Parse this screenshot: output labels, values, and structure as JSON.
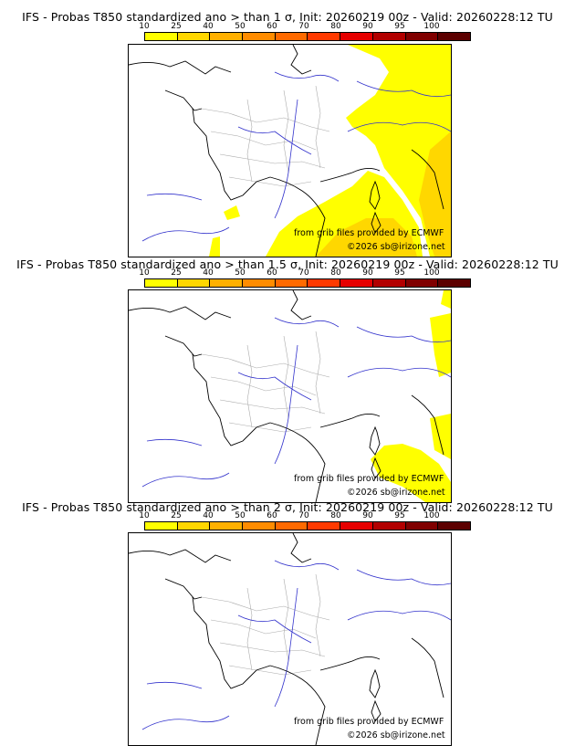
{
  "colors": {
    "bins": [
      "#ffff00",
      "#ffd700",
      "#ffb000",
      "#ff8c00",
      "#ff6a00",
      "#ff3a00",
      "#e60000",
      "#b20000",
      "#800000",
      "#5c0000"
    ],
    "land_border": "#000000",
    "rivers": "#3333cc",
    "admin": "#aaaaaa"
  },
  "colorbar_labels": [
    "10",
    "25",
    "40",
    "50",
    "60",
    "70",
    "80",
    "90",
    "95",
    "100"
  ],
  "panels": [
    {
      "title": "IFS - Probas T850  standardized ano > than 1 σ, Init: 20260219 00z - Valid: 20260228:12 TU",
      "threshold": "1",
      "credit_grib": "from grib files provided by ECMWF",
      "credit_copyright": "©2026 sb@irizone.net"
    },
    {
      "title": "IFS - Probas T850  standardized ano > than 1.5 σ, Init: 20260219 00z - Valid: 20260228:12 TU",
      "threshold": "1.5",
      "credit_grib": "from grib files provided by ECMWF",
      "credit_copyright": "©2026 sb@irizone.net"
    },
    {
      "title": "IFS - Probas T850  standardized ano > than 2 σ, Init: 20260219 00z - Valid: 20260228:12 TU",
      "threshold": "2",
      "credit_grib": "from grib files provided by ECMWF",
      "credit_copyright": "©2026 sb@irizone.net"
    }
  ]
}
